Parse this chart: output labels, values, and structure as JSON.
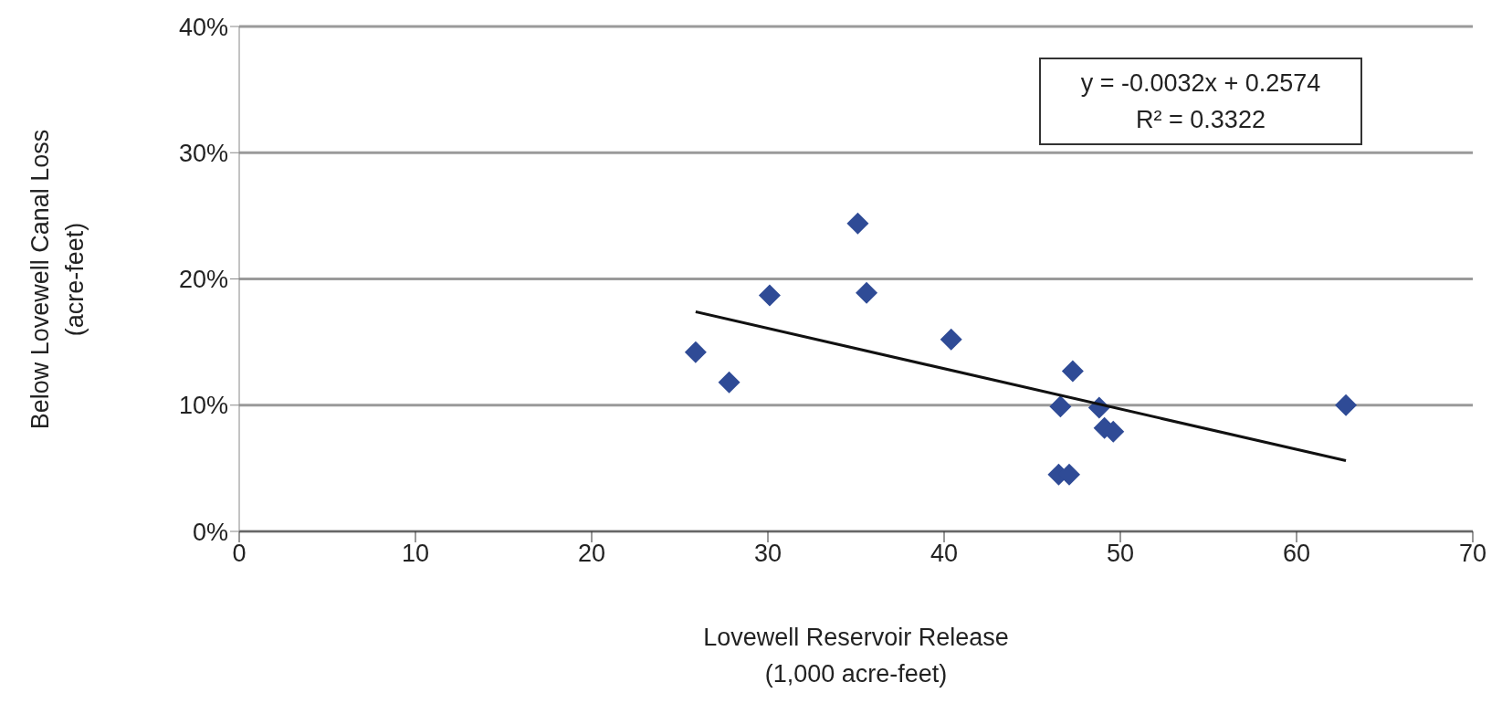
{
  "chart_data": {
    "type": "scatter",
    "xlabel": "Lovewell Reservoir Release\n(1,000 acre-feet)",
    "ylabel": "Below Lovewell Canal Loss\n(acre-feet)",
    "xlim": [
      0,
      70
    ],
    "xticks": [
      0,
      10,
      20,
      30,
      40,
      50,
      60,
      70
    ],
    "ylim": [
      0,
      40
    ],
    "yticks": [
      {
        "value": 0,
        "label": "0%"
      },
      {
        "value": 10,
        "label": "10%"
      },
      {
        "value": 20,
        "label": "20%"
      },
      {
        "value": 30,
        "label": "30%"
      },
      {
        "value": 40,
        "label": "40%"
      }
    ],
    "grid": "y",
    "legend": false,
    "annotations": [
      "y = -0.0032x + 0.2574",
      "R² = 0.3322"
    ],
    "series": [
      {
        "type": "scatter",
        "marker": "diamond",
        "color": "#2f4b96",
        "x": [
          25.9,
          27.8,
          30.1,
          35.1,
          35.6,
          40.4,
          47.3,
          46.6,
          48.8,
          49.1,
          49.6,
          46.5,
          47.1,
          62.8
        ],
        "values": [
          14.2,
          11.8,
          18.7,
          24.4,
          18.9,
          15.2,
          12.7,
          9.9,
          9.8,
          8.2,
          7.9,
          4.5,
          4.5,
          10.0
        ]
      },
      {
        "type": "line",
        "marker": "none",
        "color": "#111111",
        "x": [
          25.9,
          62.8
        ],
        "values": [
          17.4,
          5.6
        ]
      }
    ]
  }
}
